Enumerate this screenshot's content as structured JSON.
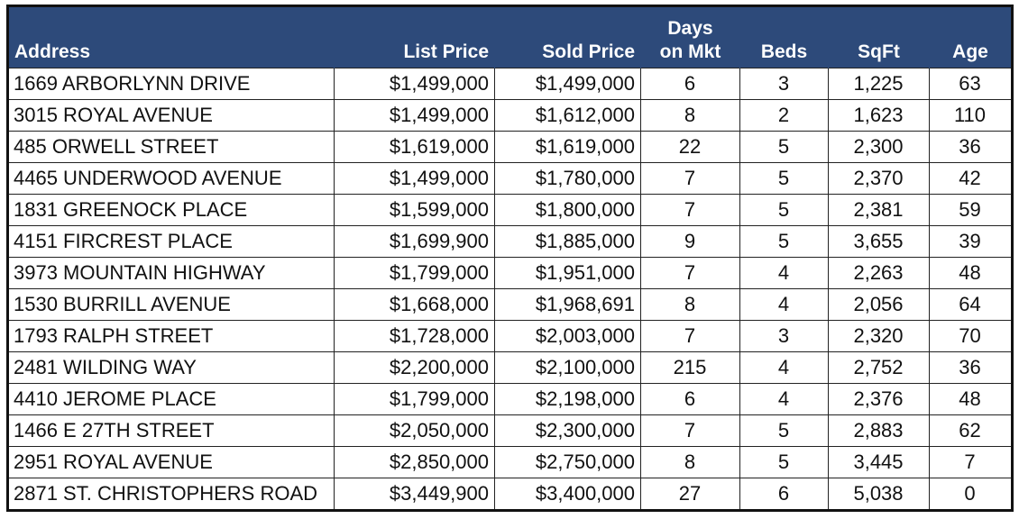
{
  "table": {
    "header": [
      "Address",
      "List Price",
      "Sold Price",
      "Days on Mkt",
      "Beds",
      "SqFt",
      "Age"
    ],
    "rows": [
      [
        "1669 ARBORLYNN DRIVE",
        "$1,499,000",
        "$1,499,000",
        "6",
        "3",
        "1,225",
        "63"
      ],
      [
        "3015 ROYAL AVENUE",
        "$1,499,000",
        "$1,612,000",
        "8",
        "2",
        "1,623",
        "110"
      ],
      [
        "485 ORWELL STREET",
        "$1,619,000",
        "$1,619,000",
        "22",
        "5",
        "2,300",
        "36"
      ],
      [
        "4465 UNDERWOOD AVENUE",
        "$1,499,000",
        "$1,780,000",
        "7",
        "5",
        "2,370",
        "42"
      ],
      [
        "1831 GREENOCK PLACE",
        "$1,599,000",
        "$1,800,000",
        "7",
        "5",
        "2,381",
        "59"
      ],
      [
        "4151 FIRCREST PLACE",
        "$1,699,900",
        "$1,885,000",
        "9",
        "5",
        "3,655",
        "39"
      ],
      [
        "3973 MOUNTAIN HIGHWAY",
        "$1,799,000",
        "$1,951,000",
        "7",
        "4",
        "2,263",
        "48"
      ],
      [
        "1530 BURRILL AVENUE",
        "$1,668,000",
        "$1,968,691",
        "8",
        "4",
        "2,056",
        "64"
      ],
      [
        "1793 RALPH STREET",
        "$1,728,000",
        "$2,003,000",
        "7",
        "3",
        "2,320",
        "70"
      ],
      [
        "2481 WILDING WAY",
        "$2,200,000",
        "$2,100,000",
        "215",
        "4",
        "2,752",
        "36"
      ],
      [
        "4410 JEROME PLACE",
        "$1,799,000",
        "$2,198,000",
        "6",
        "4",
        "2,376",
        "48"
      ],
      [
        "1466 E 27TH STREET",
        "$2,050,000",
        "$2,300,000",
        "7",
        "5",
        "2,883",
        "62"
      ],
      [
        "2951 ROYAL AVENUE",
        "$2,850,000",
        "$2,750,000",
        "8",
        "5",
        "3,445",
        "7"
      ],
      [
        "2871 ST. CHRISTOPHERS ROAD",
        "$3,449,900",
        "$3,400,000",
        "27",
        "6",
        "5,038",
        "0"
      ]
    ]
  }
}
